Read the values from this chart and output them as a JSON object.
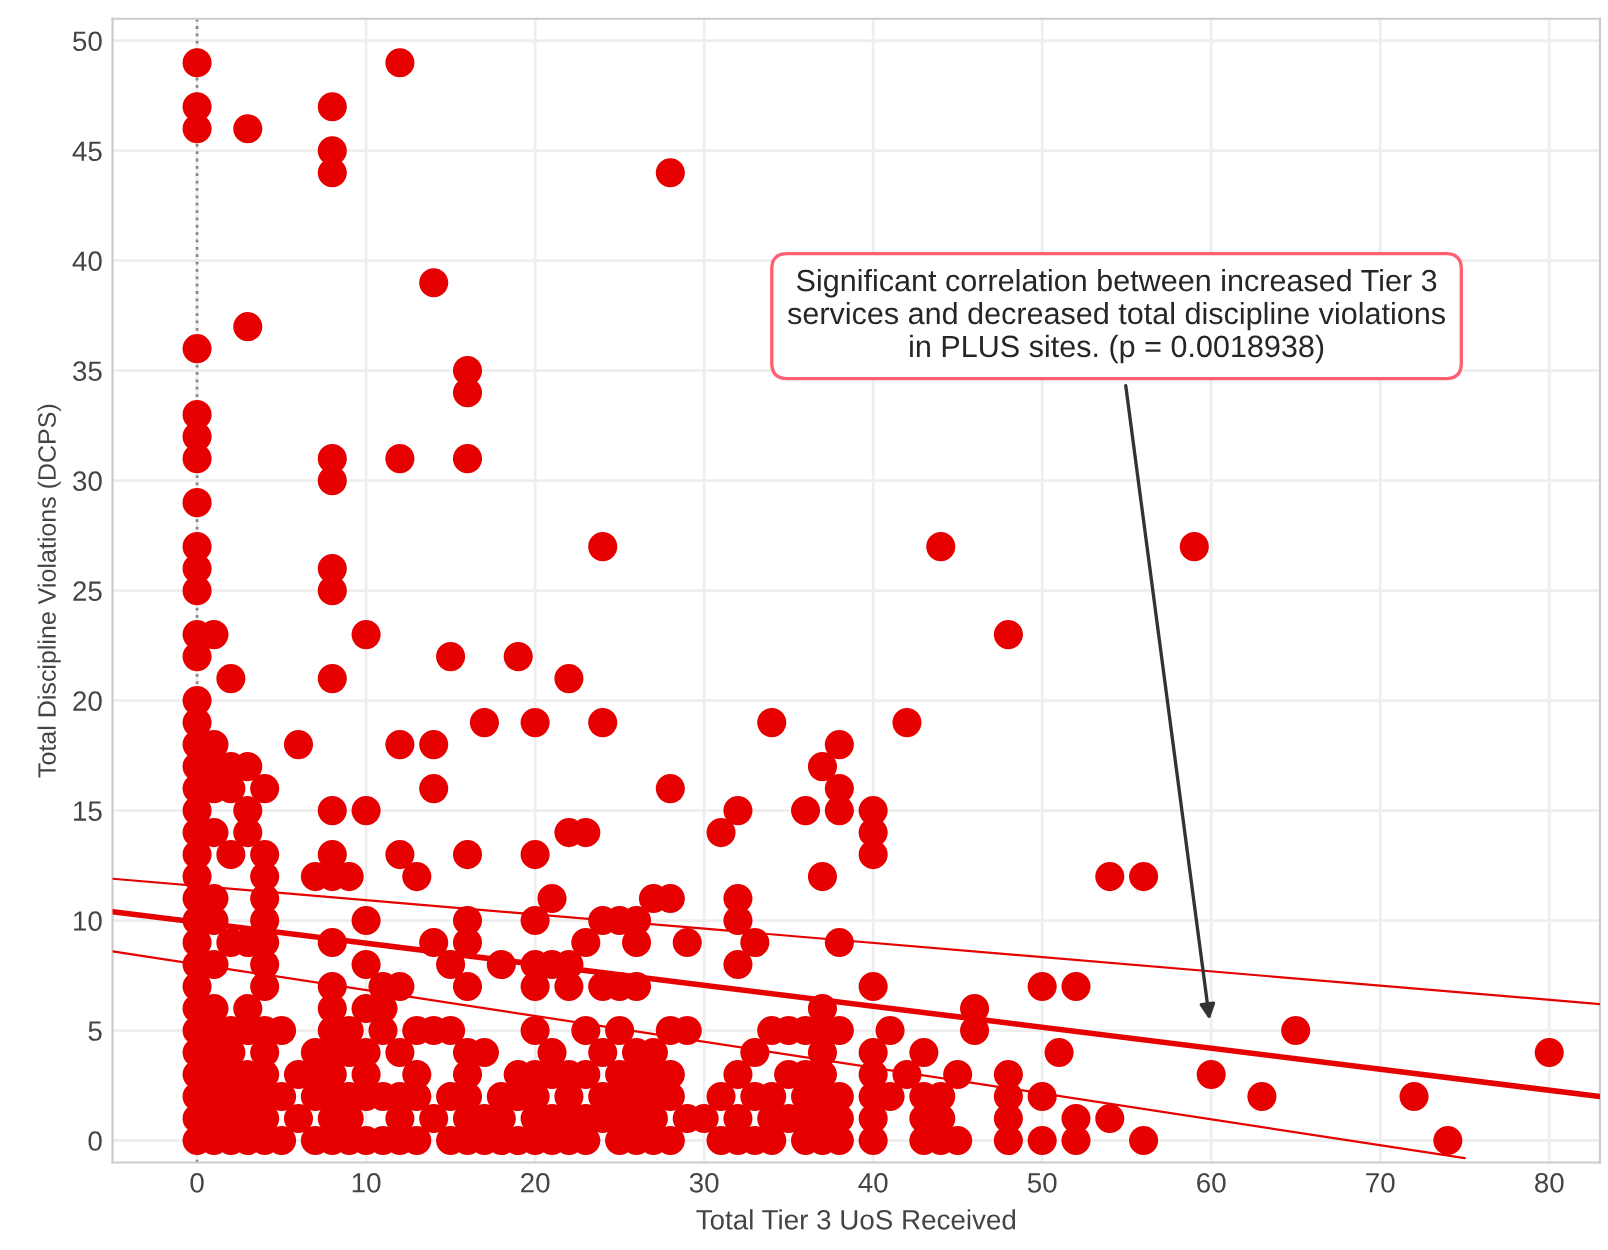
{
  "chart_data": {
    "type": "scatter",
    "xlabel": "Total Tier 3 UoS Received",
    "ylabel": "Total Discipline Violations (DCPS)",
    "xlim": [
      -5,
      83
    ],
    "ylim": [
      -1,
      51
    ],
    "xticks": [
      0,
      10,
      20,
      30,
      40,
      50,
      60,
      70,
      80
    ],
    "yticks": [
      0,
      5,
      10,
      15,
      20,
      25,
      30,
      35,
      40,
      45,
      50
    ],
    "grid": true,
    "ref_lines": [
      {
        "axis": "x",
        "value": 0,
        "color": "#888888",
        "line_style": "dotted"
      }
    ],
    "annotations": [
      "Significant correlation between increased Tier 3\nservices and decreased total discipline violations\nin PLUS sites. (p = 0.0018938)"
    ],
    "series": [
      {
        "color": "#e60000",
        "marker": "circle",
        "x": [
          0,
          0,
          0,
          0,
          0,
          0,
          0,
          0,
          0,
          0,
          0,
          0,
          0,
          0,
          0,
          0,
          0,
          0,
          0,
          0,
          0,
          0,
          0,
          0,
          0,
          0,
          0,
          0,
          0,
          0,
          0,
          0,
          0,
          0,
          1,
          1,
          1,
          1,
          1,
          1,
          1,
          1,
          1,
          1,
          1,
          1,
          1,
          1,
          1,
          2,
          2,
          2,
          2,
          2,
          2,
          2,
          2,
          2,
          2,
          2,
          3,
          3,
          3,
          3,
          3,
          3,
          3,
          3,
          3,
          3,
          3,
          3,
          4,
          4,
          4,
          4,
          4,
          4,
          4,
          4,
          4,
          4,
          4,
          4,
          4,
          4,
          5,
          5,
          5,
          6,
          6,
          6,
          7,
          7,
          7,
          7,
          7,
          8,
          8,
          8,
          8,
          8,
          8,
          8,
          8,
          8,
          8,
          8,
          8,
          8,
          8,
          8,
          8,
          8,
          8,
          8,
          8,
          9,
          9,
          9,
          9,
          9,
          9,
          10,
          10,
          10,
          10,
          10,
          10,
          10,
          10,
          10,
          11,
          11,
          11,
          11,
          11,
          12,
          12,
          12,
          12,
          12,
          12,
          12,
          12,
          12,
          13,
          13,
          13,
          13,
          13,
          14,
          14,
          14,
          14,
          14,
          14,
          15,
          15,
          15,
          15,
          15,
          16,
          16,
          16,
          16,
          16,
          16,
          16,
          16,
          16,
          16,
          16,
          16,
          17,
          17,
          17,
          17,
          18,
          18,
          18,
          18,
          19,
          19,
          19,
          19,
          20,
          20,
          20,
          20,
          20,
          20,
          20,
          20,
          20,
          20,
          21,
          21,
          21,
          21,
          21,
          21,
          22,
          22,
          22,
          22,
          22,
          22,
          22,
          22,
          23,
          23,
          23,
          23,
          23,
          23,
          24,
          24,
          24,
          24,
          24,
          24,
          24,
          25,
          25,
          25,
          25,
          25,
          25,
          25,
          26,
          26,
          26,
          26,
          26,
          26,
          26,
          26,
          27,
          27,
          27,
          27,
          27,
          27,
          28,
          28,
          28,
          28,
          28,
          28,
          28,
          29,
          29,
          29,
          30,
          31,
          31,
          31,
          32,
          32,
          32,
          32,
          32,
          32,
          32,
          33,
          33,
          33,
          33,
          34,
          34,
          34,
          34,
          34,
          35,
          35,
          35,
          36,
          36,
          36,
          36,
          36,
          36,
          37,
          37,
          37,
          37,
          37,
          37,
          37,
          37,
          37,
          38,
          38,
          38,
          38,
          38,
          38,
          38,
          38,
          40,
          40,
          40,
          40,
          40,
          40,
          40,
          40,
          40,
          41,
          41,
          42,
          42,
          43,
          43,
          43,
          43,
          44,
          44,
          44,
          44,
          45,
          45,
          46,
          46,
          48,
          48,
          48,
          48,
          48,
          50,
          50,
          50,
          51,
          52,
          52,
          52,
          54,
          54,
          56,
          56,
          59,
          60,
          63,
          65,
          72,
          74,
          80
        ],
        "values": [
          0,
          1,
          2,
          3,
          4,
          5,
          6,
          7,
          8,
          9,
          10,
          11,
          12,
          13,
          14,
          15,
          16,
          17,
          18,
          19,
          20,
          22,
          23,
          25,
          26,
          27,
          29,
          31,
          32,
          33,
          36,
          46,
          47,
          49,
          0,
          1,
          2,
          3,
          4,
          5,
          6,
          8,
          10,
          11,
          14,
          16,
          17,
          18,
          23,
          0,
          1,
          2,
          3,
          4,
          5,
          9,
          13,
          16,
          17,
          21,
          0,
          1,
          2,
          3,
          5,
          6,
          9,
          14,
          15,
          17,
          37,
          46,
          0,
          1,
          2,
          3,
          4,
          5,
          7,
          8,
          9,
          10,
          11,
          12,
          13,
          16,
          0,
          2,
          5,
          1,
          3,
          18,
          0,
          2,
          3,
          4,
          12,
          0,
          1,
          2,
          3,
          4,
          5,
          6,
          7,
          9,
          12,
          13,
          15,
          21,
          25,
          26,
          30,
          31,
          44,
          45,
          47,
          0,
          1,
          2,
          4,
          5,
          12,
          0,
          2,
          3,
          4,
          6,
          8,
          10,
          15,
          23,
          0,
          2,
          5,
          6,
          7,
          0,
          1,
          2,
          4,
          7,
          13,
          18,
          31,
          49,
          0,
          2,
          3,
          5,
          12,
          1,
          5,
          9,
          16,
          18,
          39,
          0,
          2,
          5,
          8,
          22,
          0,
          1,
          2,
          3,
          4,
          7,
          9,
          10,
          13,
          31,
          34,
          35,
          0,
          1,
          4,
          19,
          0,
          1,
          2,
          8,
          0,
          2,
          3,
          22,
          0,
          1,
          2,
          3,
          5,
          7,
          8,
          10,
          13,
          19,
          0,
          1,
          3,
          4,
          8,
          11,
          0,
          1,
          2,
          3,
          7,
          8,
          14,
          21,
          0,
          1,
          3,
          5,
          9,
          14,
          1,
          2,
          4,
          7,
          10,
          19,
          27,
          0,
          1,
          2,
          3,
          5,
          7,
          10,
          0,
          1,
          2,
          3,
          4,
          7,
          9,
          10,
          0,
          1,
          2,
          3,
          4,
          11,
          0,
          2,
          3,
          5,
          11,
          16,
          44,
          1,
          5,
          9,
          1,
          0,
          2,
          14,
          0,
          1,
          3,
          8,
          10,
          11,
          15,
          0,
          2,
          4,
          9,
          0,
          1,
          2,
          5,
          19,
          1,
          3,
          5,
          0,
          1,
          2,
          3,
          5,
          15,
          0,
          1,
          2,
          3,
          4,
          5,
          6,
          12,
          17,
          0,
          1,
          2,
          5,
          9,
          15,
          16,
          18,
          0,
          1,
          2,
          3,
          4,
          7,
          13,
          14,
          15,
          2,
          5,
          3,
          19,
          0,
          1,
          2,
          4,
          0,
          1,
          2,
          27,
          0,
          3,
          5,
          6,
          0,
          1,
          2,
          3,
          23,
          0,
          2,
          7,
          4,
          0,
          1,
          7,
          1,
          12,
          0,
          12,
          27,
          3,
          2,
          5,
          2,
          0,
          4
        ]
      },
      {
        "type": "line",
        "color": "#e60000",
        "marker": "none",
        "x": [
          -5,
          83
        ],
        "values": [
          10.4,
          2.0
        ]
      },
      {
        "type": "line",
        "color": "#e60000",
        "marker": "none",
        "x": [
          -5,
          83
        ],
        "values": [
          11.9,
          6.2
        ]
      },
      {
        "type": "line",
        "color": "#e60000",
        "marker": "none",
        "x": [
          -5,
          75
        ],
        "values": [
          8.6,
          -0.8
        ]
      }
    ]
  }
}
